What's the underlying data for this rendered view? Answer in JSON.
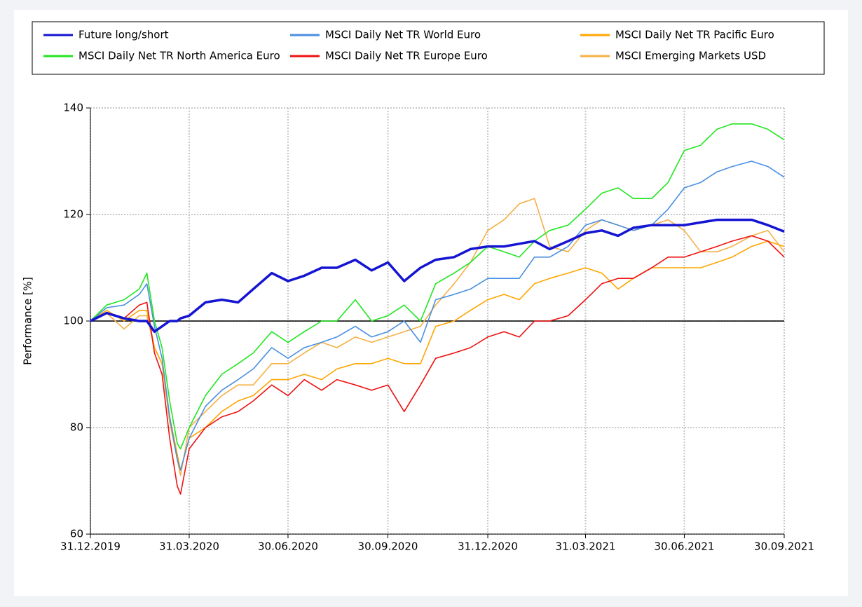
{
  "chart_data": {
    "type": "line",
    "y_label": "Performance [%]",
    "x": [
      "31.12.2019",
      "15.01.2020",
      "31.01.2020",
      "14.02.2020",
      "21.02.2020",
      "28.02.2020",
      "06.03.2020",
      "13.03.2020",
      "20.03.2020",
      "23.03.2020",
      "31.03.2020",
      "15.04.2020",
      "30.04.2020",
      "15.05.2020",
      "29.05.2020",
      "15.06.2020",
      "30.06.2020",
      "15.07.2020",
      "31.07.2020",
      "14.08.2020",
      "31.08.2020",
      "15.09.2020",
      "30.09.2020",
      "15.10.2020",
      "30.10.2020",
      "13.11.2020",
      "30.11.2020",
      "15.12.2020",
      "31.12.2020",
      "15.01.2021",
      "29.01.2021",
      "12.02.2021",
      "26.02.2021",
      "15.03.2021",
      "31.03.2021",
      "15.04.2021",
      "30.04.2021",
      "14.05.2021",
      "31.05.2021",
      "15.06.2021",
      "30.06.2021",
      "15.07.2021",
      "30.07.2021",
      "13.08.2021",
      "31.08.2021",
      "15.09.2021",
      "30.09.2021"
    ],
    "series": [
      {
        "name": "Future long/short",
        "color": "#1414d2",
        "values": [
          100,
          101.5,
          100.5,
          100,
          100,
          98,
          99,
          100,
          100,
          100.5,
          101,
          103.5,
          104,
          103.5,
          106,
          109,
          107.5,
          108.5,
          110,
          110,
          111.5,
          109.5,
          111,
          107.5,
          110,
          111.5,
          112,
          113.5,
          114,
          114,
          114.5,
          115,
          113.5,
          115,
          116.5,
          117,
          116,
          117.5,
          118,
          118,
          118,
          118.5,
          119,
          119,
          119,
          118,
          116.8
        ]
      },
      {
        "name": "MSCI Daily Net TR North America Euro",
        "color": "#22e622",
        "values": [
          100,
          103,
          104,
          106,
          109,
          100,
          95,
          85,
          77,
          76,
          80,
          86,
          90,
          92,
          94,
          98,
          96,
          98,
          100,
          100,
          104,
          100,
          101,
          103,
          100,
          107,
          109,
          111,
          114,
          113,
          112,
          115,
          117,
          118,
          121,
          124,
          125,
          123,
          123,
          126,
          132,
          133,
          136,
          137,
          137,
          136,
          134
        ]
      },
      {
        "name": "MSCI Daily Net TR World Euro",
        "color": "#4a8fe0",
        "values": [
          100,
          102.5,
          103,
          105,
          107,
          99,
          93,
          82,
          74,
          72,
          78,
          84,
          87,
          89,
          91,
          95,
          93,
          95,
          96,
          97,
          99,
          97,
          98,
          100,
          96,
          104,
          105,
          106,
          108,
          108,
          108,
          112,
          112,
          114,
          118,
          119,
          118,
          117,
          118,
          121,
          125,
          126,
          128,
          129,
          130,
          129,
          127
        ]
      },
      {
        "name": "MSCI Daily Net TR Europe Euro",
        "color": "#ee1111",
        "values": [
          100,
          101.5,
          100.5,
          103,
          103.5,
          94,
          90,
          78,
          69,
          67.5,
          76,
          80,
          82,
          83,
          85,
          88,
          86,
          89,
          87,
          89,
          88,
          87,
          88,
          83,
          88,
          93,
          94,
          95,
          97,
          98,
          97,
          100,
          100,
          101,
          104,
          107,
          108,
          108,
          110,
          112,
          112,
          113,
          114,
          115,
          116,
          115,
          112
        ]
      },
      {
        "name": "MSCI Daily Net TR Pacific Euro",
        "color": "#ffa500",
        "values": [
          100,
          102,
          100,
          102,
          102,
          95,
          92,
          82,
          75,
          72,
          78,
          80,
          83,
          85,
          86,
          89,
          89,
          90,
          89,
          91,
          92,
          92,
          93,
          92,
          92,
          99,
          100,
          102,
          104,
          105,
          104,
          107,
          108,
          109,
          110,
          109,
          106,
          108,
          110,
          110,
          110,
          110,
          111,
          112,
          114,
          115,
          114
        ]
      },
      {
        "name": "MSCI Emerging Markets USD",
        "color": "#f5b045",
        "values": [
          100,
          101.5,
          98.5,
          101,
          101,
          95,
          92,
          81,
          74,
          71,
          80,
          83,
          86,
          88,
          88,
          92,
          92,
          94,
          96,
          95,
          97,
          96,
          97,
          98,
          99,
          103,
          107,
          111,
          117,
          119,
          122,
          123,
          114,
          113,
          117,
          119,
          118,
          117,
          118,
          119,
          117,
          113,
          113,
          114,
          116,
          117,
          113
        ]
      }
    ],
    "xlim": [
      "31.12.2019",
      "30.09.2021"
    ],
    "xticks": [
      "31.12.2019",
      "31.03.2020",
      "30.06.2020",
      "30.09.2020",
      "31.12.2020",
      "31.03.2021",
      "30.06.2021",
      "30.09.2021"
    ],
    "ylim": [
      60,
      140
    ],
    "yticks": [
      60,
      80,
      100,
      120,
      140
    ],
    "reference_line": 100,
    "grid": true,
    "legend": "top"
  }
}
